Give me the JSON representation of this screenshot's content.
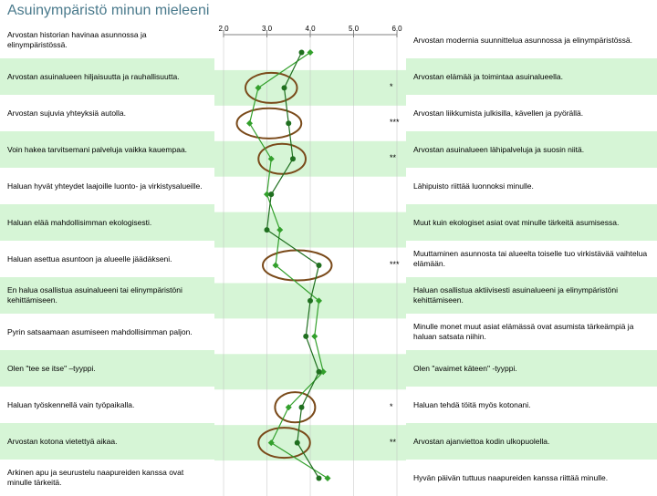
{
  "title": "Asuinympäristö minun mieleeni",
  "chart": {
    "type": "paired-profile",
    "background": "#ffffff",
    "stripe_color": "#d6f5d6",
    "axis_labels": [
      "2,0",
      "3,0",
      "4,0",
      "5,0",
      "6,0"
    ],
    "axis_min": 2.0,
    "axis_max": 6.0,
    "tick_color": "#808080",
    "grid_color": "#c0c0c0",
    "series": [
      {
        "id": "a",
        "color": "#33a02c",
        "marker": "diamond",
        "values": [
          4.0,
          2.8,
          2.6,
          3.1,
          3.0,
          3.3,
          3.2,
          4.2,
          4.1,
          4.3,
          3.5,
          3.1,
          4.4
        ]
      },
      {
        "id": "b",
        "color": "#1f6f1f",
        "marker": "circle",
        "values": [
          3.8,
          3.4,
          3.5,
          3.6,
          3.1,
          3.0,
          4.2,
          4.0,
          3.9,
          4.2,
          3.8,
          3.7,
          4.2
        ]
      }
    ],
    "circles": {
      "color": "#7a4a1a",
      "stroke_width": 2,
      "rows": [
        1,
        2,
        3,
        6,
        10,
        11
      ]
    },
    "sig_markers": [
      {
        "row": 1,
        "text": "*"
      },
      {
        "row": 2,
        "text": "***"
      },
      {
        "row": 3,
        "text": "**"
      },
      {
        "row": 6,
        "text": "***"
      },
      {
        "row": 10,
        "text": "*"
      },
      {
        "row": 11,
        "text": "**"
      }
    ]
  },
  "rows": {
    "left": [
      "Arvostan historian havinaa asunnossa ja elinympäristössä.",
      "Arvostan asuinalueen hiljaisuutta ja rauhallisuutta.",
      "Arvostan sujuvia yhteyksiä autolla.",
      "Voin hakea tarvitsemani palveluja vaikka kauempaa.",
      "Haluan hyvät yhteydet laajoille luonto- ja virkistysalueille.",
      "Haluan elää mahdollisimman ekologisesti.",
      "Haluan asettua asuntoon ja alueelle jäädäkseni.",
      "En halua osallistua asuinalueeni tai elinympäristöni kehittämiseen.",
      "Pyrin satsaamaan asumiseen mahdollisimman paljon.",
      "Olen \"tee se itse\" –tyyppi.",
      "Haluan työskennellä vain työpaikalla.",
      "Arvostan kotona vietettyä aikaa.",
      "Arkinen apu ja seurustelu naapureiden kanssa ovat minulle tärkeitä."
    ],
    "right": [
      "Arvostan modernia suunnittelua asunnossa ja elinympäristössä.",
      "Arvostan elämää ja toimintaa asuinalueella.",
      "Arvostan liikkumista julkisilla, kävellen ja pyörällä.",
      "Arvostan asuinalueen lähipalveluja ja suosin niitä.",
      "Lähipuisto riittää luonnoksi minulle.",
      "Muut kuin ekologiset asiat ovat minulle tärkeitä asumisessa.",
      "Muuttaminen asunnosta tai alueelta toiselle tuo virkistävää vaihtelua elämään.",
      "Haluan osallistua aktiivisesti asuinalueeni ja elinympäristöni kehittämiseen.",
      "Minulle monet muut asiat elämässä ovat asumista tärkeämpiä ja haluan satsata niihin.",
      "Olen \"avaimet käteen\" -tyyppi.",
      "Haluan tehdä töitä myös kotonani.",
      "Arvostan ajanviettoa kodin ulkopuolella.",
      "Hyvän päivän tuttuus naapureiden kanssa riittää minulle."
    ]
  }
}
